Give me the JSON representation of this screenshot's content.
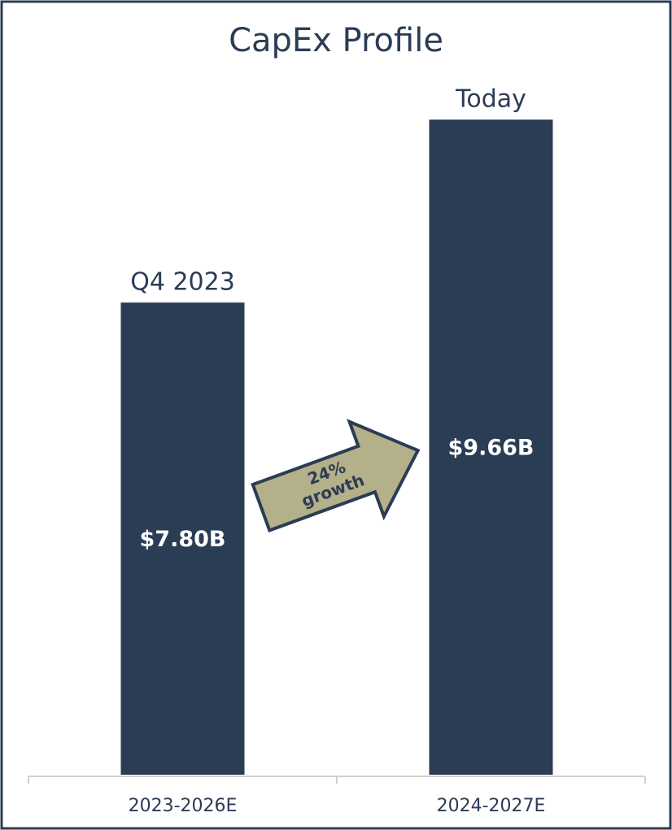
{
  "chart_data": {
    "type": "bar",
    "title": "CapEx Profile",
    "categories": [
      "2023-2026E",
      "2024-2027E"
    ],
    "values": [
      7.8,
      9.66
    ],
    "value_labels": [
      "$7.80B",
      "$9.66B"
    ],
    "bar_annotations": [
      "Q4 2023",
      "Today"
    ],
    "arrow_label": [
      "24%",
      "growth"
    ],
    "color": "#2b3c55",
    "arrow_color": "#b3b08a",
    "ylim": [
      3,
      10
    ]
  }
}
